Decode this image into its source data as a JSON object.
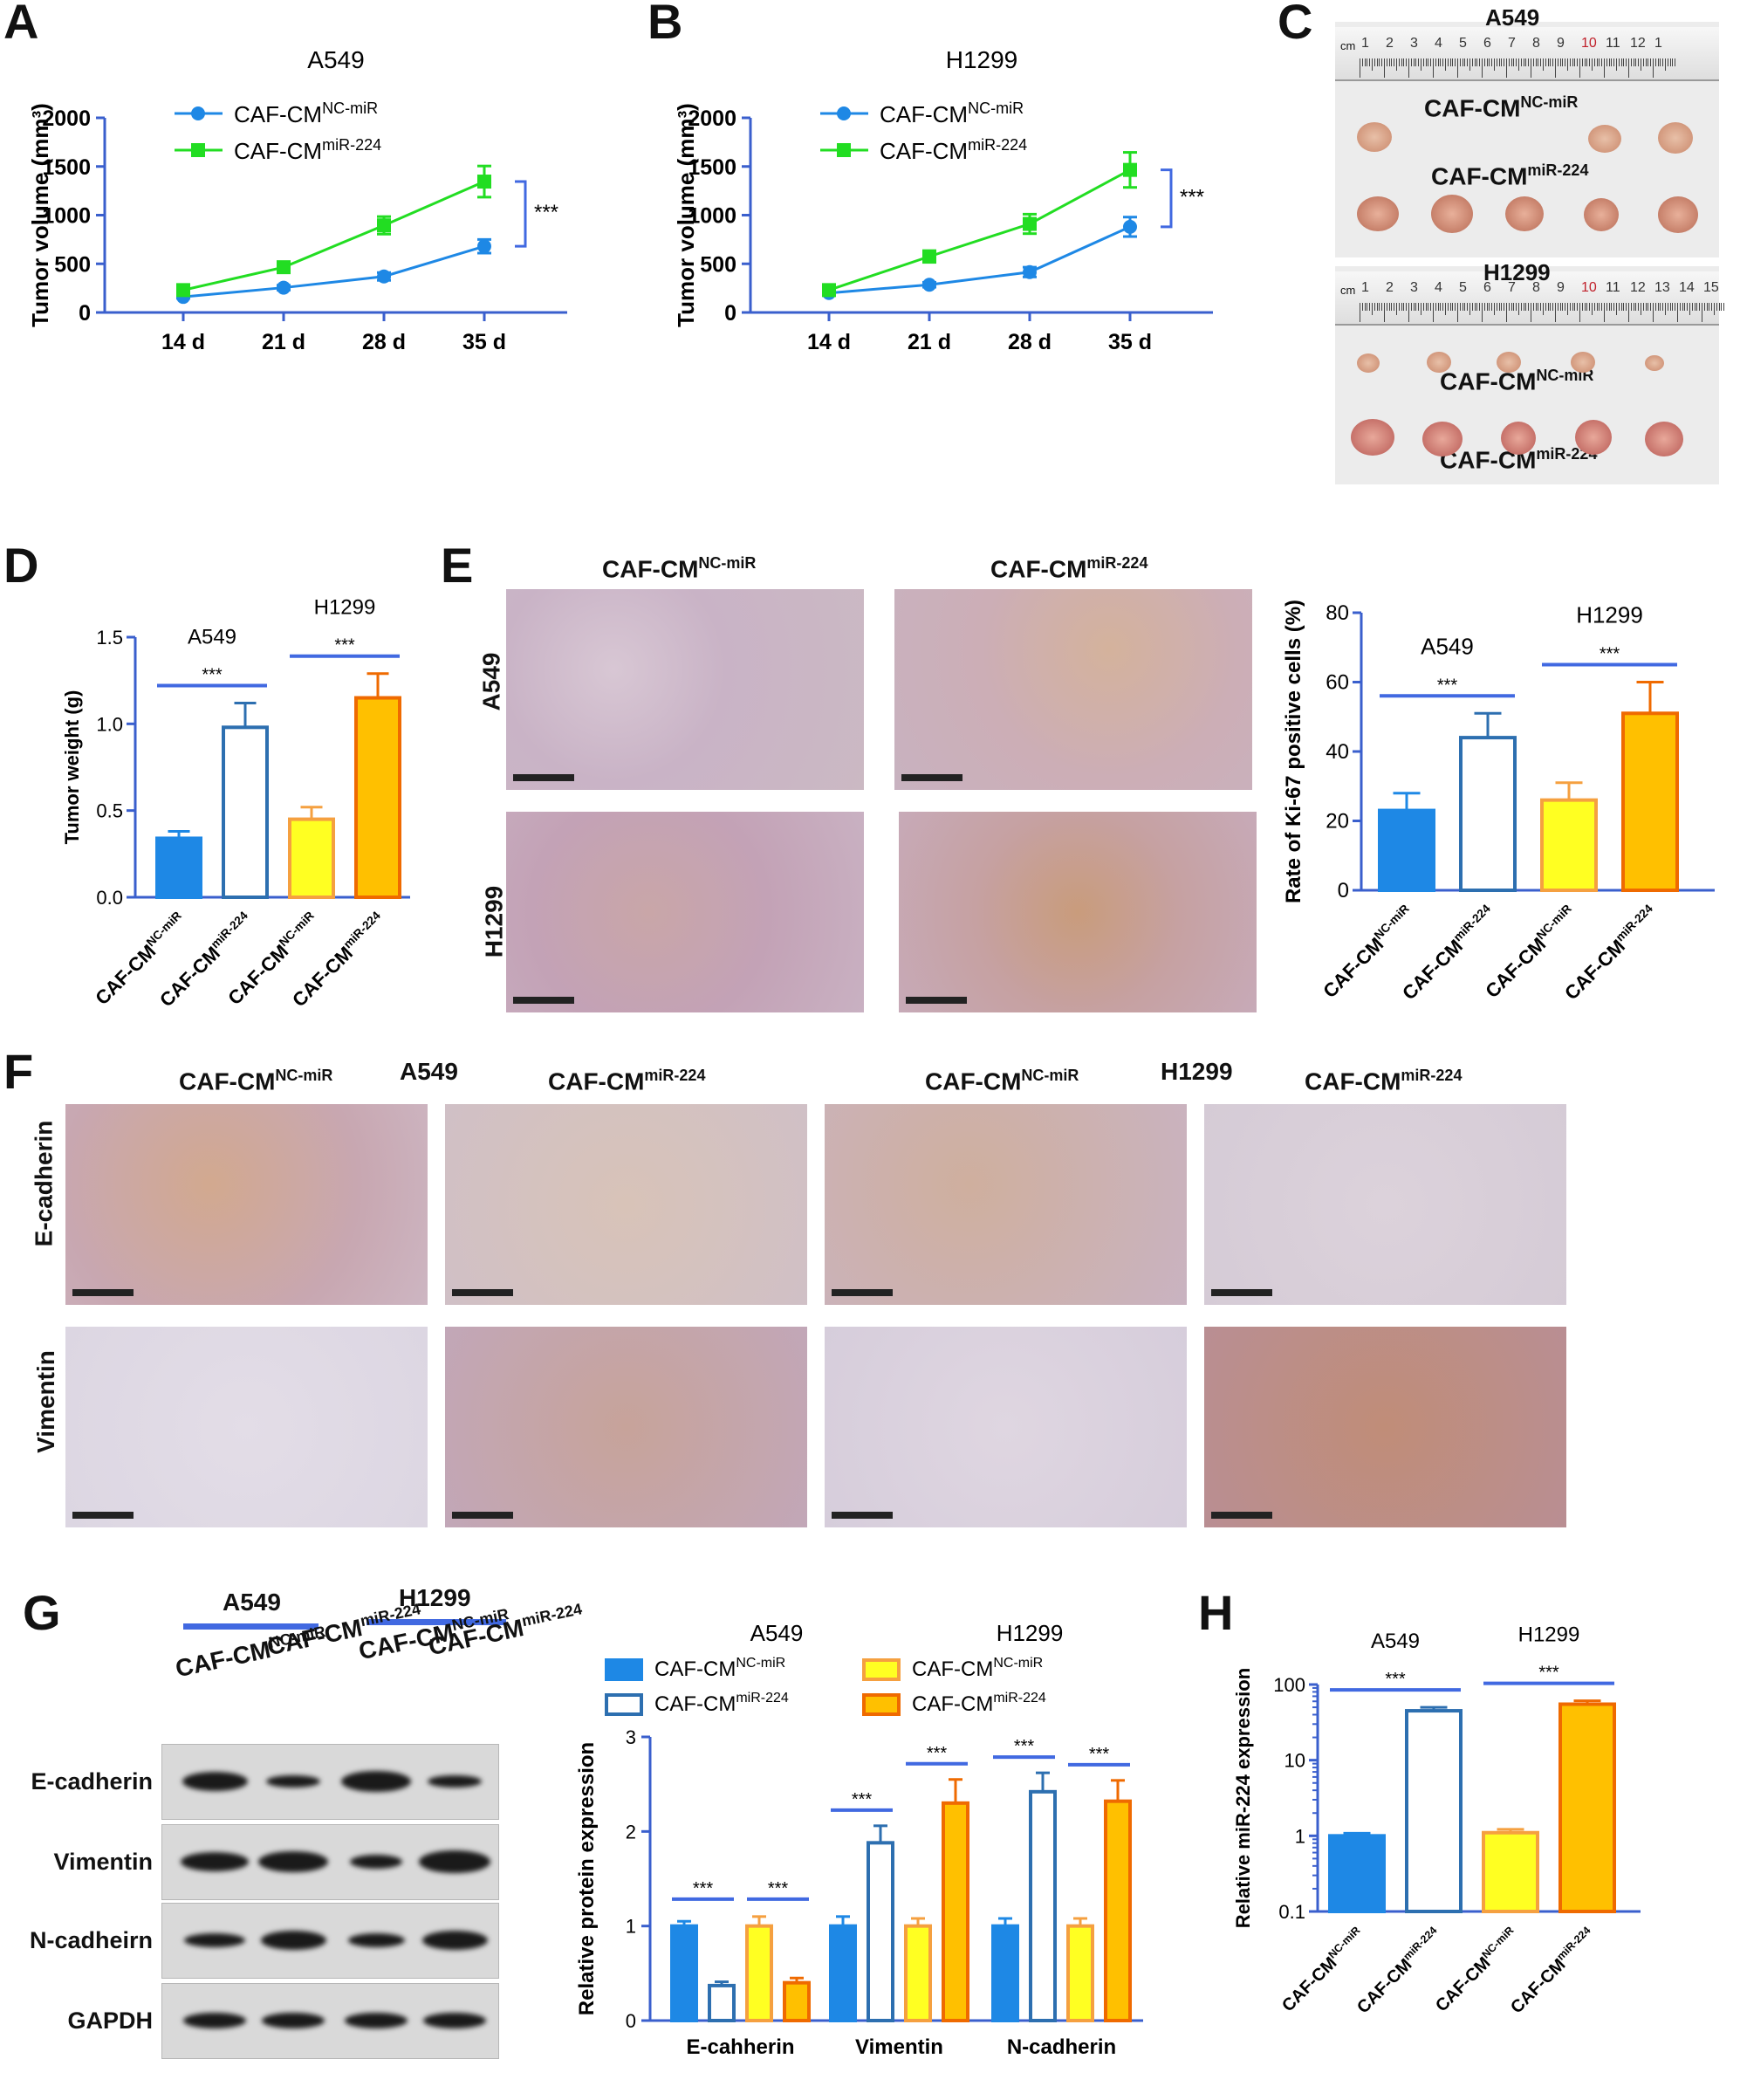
{
  "letters": {
    "a": "A",
    "b": "B",
    "c": "C",
    "d": "D",
    "e": "E",
    "f": "F",
    "g": "G",
    "h": "H"
  },
  "panelA": {
    "title": "A549",
    "ylabel": "Tumor volume (mm³)",
    "ylim": [
      0,
      2000
    ],
    "yticks": [
      "0",
      "500",
      "1000",
      "1500",
      "2000"
    ],
    "categories": [
      "14 d",
      "21 d",
      "28 d",
      "35 d"
    ],
    "series": [
      {
        "name": "CAF-CM",
        "sup": "NC-miR",
        "color": "#1e88e5",
        "marker": "circle",
        "values": [
          160,
          255,
          370,
          680
        ],
        "err": [
          15,
          25,
          40,
          70
        ]
      },
      {
        "name": "CAF-CM",
        "sup": "miR-224",
        "color": "#22dd22",
        "marker": "square",
        "values": [
          230,
          465,
          895,
          1345
        ],
        "err": [
          20,
          50,
          90,
          160
        ]
      }
    ],
    "sig": "***"
  },
  "panelB": {
    "title": "H1299",
    "ylabel": "Tumor volume (mm³)",
    "ylim": [
      0,
      2000
    ],
    "yticks": [
      "0",
      "500",
      "1000",
      "1500",
      "2000"
    ],
    "categories": [
      "14 d",
      "21 d",
      "28 d",
      "35 d"
    ],
    "series": [
      {
        "name": "CAF-CM",
        "sup": "NC-miR",
        "color": "#1e88e5",
        "marker": "circle",
        "values": [
          200,
          285,
          415,
          880
        ],
        "err": [
          15,
          25,
          50,
          100
        ]
      },
      {
        "name": "CAF-CM",
        "sup": "miR-224",
        "color": "#22dd22",
        "marker": "square",
        "values": [
          230,
          575,
          910,
          1465
        ],
        "err": [
          20,
          60,
          100,
          180
        ]
      }
    ],
    "sig": "***"
  },
  "panelC": {
    "a549": "A549",
    "h1299": "H1299",
    "nc_main": "CAF-CM",
    "nc_sup": "NC-miR",
    "mi_main": "CAF-CM",
    "mi_sup": "miR-224",
    "ruler_cm": "cm",
    "ruler1": [
      "1",
      "2",
      "3",
      "4",
      "5",
      "6",
      "7",
      "8",
      "9",
      "10",
      "11",
      "12",
      "1"
    ],
    "ruler2": [
      "1",
      "2",
      "3",
      "4",
      "5",
      "6",
      "7",
      "8",
      "9",
      "10",
      "11",
      "12",
      "13",
      "14",
      "15"
    ]
  },
  "panelD": {
    "ylabel": "Tumor weight (g)",
    "ylim": [
      0,
      1.5
    ],
    "yticks": [
      "0.0",
      "0.5",
      "1.0",
      "1.5"
    ],
    "groups": [
      "A549",
      "H1299"
    ],
    "categories": [
      {
        "main": "CAF-CM",
        "sup": "NC-miR"
      },
      {
        "main": "CAF-CM",
        "sup": "miR-224"
      },
      {
        "main": "CAF-CM",
        "sup": "NC-miR"
      },
      {
        "main": "CAF-CM",
        "sup": "miR-224"
      }
    ],
    "values": [
      0.34,
      0.98,
      0.45,
      1.15
    ],
    "err": [
      0.04,
      0.14,
      0.07,
      0.14
    ],
    "sig": [
      "***",
      "***"
    ]
  },
  "panelE": {
    "col1_main": "CAF-CM",
    "col1_sup": "NC-miR",
    "col2_main": "CAF-CM",
    "col2_sup": "miR-224",
    "row1": "A549",
    "row2": "H1299",
    "chart": {
      "ylabel": "Rate of Ki-67 positive cells (%)",
      "ylim": [
        0,
        80
      ],
      "yticks": [
        "0",
        "20",
        "40",
        "60",
        "80"
      ],
      "groups": [
        "A549",
        "H1299"
      ],
      "categories": [
        {
          "main": "CAF-CM",
          "sup": "NC-miR"
        },
        {
          "main": "CAF-CM",
          "sup": "miR-224"
        },
        {
          "main": "CAF-CM",
          "sup": "NC-miR"
        },
        {
          "main": "CAF-CM",
          "sup": "miR-224"
        }
      ],
      "values": [
        23,
        44,
        26,
        51
      ],
      "err": [
        5,
        7,
        5,
        9
      ],
      "sig": [
        "***",
        "***"
      ]
    }
  },
  "panelF": {
    "a549": "A549",
    "h1299": "H1299",
    "cols": [
      {
        "main": "CAF-CM",
        "sup": "NC-miR"
      },
      {
        "main": "CAF-CM",
        "sup": "miR-224"
      },
      {
        "main": "CAF-CM",
        "sup": "NC-miR"
      },
      {
        "main": "CAF-CM",
        "sup": "miR-224"
      }
    ],
    "rows": [
      "E-cadherin",
      "Vimentin"
    ]
  },
  "panelG": {
    "a549": "A549",
    "h1299": "H1299",
    "lanes": [
      {
        "main": "CAF-CM",
        "sup": "NC-miR"
      },
      {
        "main": "CAF-CM",
        "sup": "miR-224"
      },
      {
        "main": "CAF-CM",
        "sup": "NC-miR"
      },
      {
        "main": "CAF-CM",
        "sup": "miR-224"
      }
    ],
    "blots": [
      "E-cadherin",
      "Vimentin",
      "N-cadheirn",
      "GAPDH"
    ],
    "chart": {
      "ylabel": "Relative protein expression",
      "ylim": [
        0,
        3
      ],
      "yticks": [
        "0",
        "1",
        "2",
        "3"
      ],
      "categories": [
        "E-cahherin",
        "Vimentin",
        "N-cadherin"
      ],
      "legend_groups": [
        "A549",
        "H1299"
      ],
      "series": [
        {
          "name": "CAF-CM",
          "sup": "NC-miR",
          "group": "A549",
          "values": [
            1.0,
            1.0,
            1.0
          ],
          "err": [
            0.05,
            0.1,
            0.08
          ]
        },
        {
          "name": "CAF-CM",
          "sup": "miR-224",
          "group": "A549",
          "values": [
            0.37,
            1.88,
            2.42
          ],
          "err": [
            0.04,
            0.18,
            0.2
          ]
        },
        {
          "name": "CAF-CM",
          "sup": "NC-miR",
          "group": "H1299",
          "values": [
            1.0,
            1.0,
            1.0
          ],
          "err": [
            0.1,
            0.08,
            0.08
          ]
        },
        {
          "name": "CAF-CM",
          "sup": "miR-224",
          "group": "H1299",
          "values": [
            0.4,
            2.3,
            2.32
          ],
          "err": [
            0.05,
            0.25,
            0.22
          ]
        }
      ],
      "sig": [
        "***",
        "***",
        "***",
        "***",
        "***",
        "***"
      ]
    }
  },
  "panelH": {
    "ylabel": "Relative miR-224 expression",
    "yticks": [
      "0.1",
      "1",
      "10",
      "100"
    ],
    "scale": "log",
    "groups": [
      "A549",
      "H1299"
    ],
    "categories": [
      {
        "main": "CAF-CM",
        "sup": "NC-miR"
      },
      {
        "main": "CAF-CM",
        "sup": "miR-224"
      },
      {
        "main": "CAF-CM",
        "sup": "NC-miR"
      },
      {
        "main": "CAF-CM",
        "sup": "miR-224"
      }
    ],
    "values": [
      1.0,
      45,
      1.1,
      55
    ],
    "err_hi": [
      1.08,
      50,
      1.22,
      61
    ],
    "sig": [
      "***",
      "***"
    ]
  },
  "colors": {
    "blue": "#1e88e5",
    "green": "#22dd22",
    "yellow": "#ffff22",
    "yellow_border": "#f5a040",
    "orange": "#ffc000",
    "orange_border": "#ef6a00",
    "axis": "#3a5fcd",
    "sigbar": "#4169e1"
  }
}
